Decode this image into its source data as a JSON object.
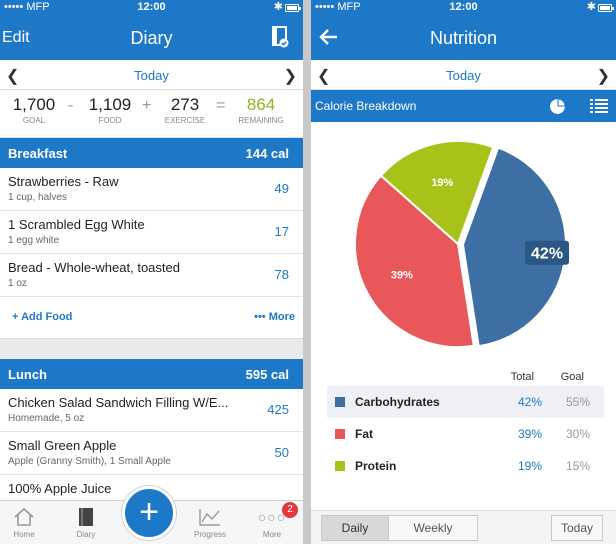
{
  "left": {
    "status": {
      "carrier": "MFP",
      "time": "12:00"
    },
    "nav": {
      "edit": "Edit",
      "title": "Diary"
    },
    "date": "Today",
    "summary": {
      "goal": "1,700",
      "goal_label": "GOAL",
      "minus": "-",
      "food": "1,109",
      "food_label": "FOOD",
      "plus": "+",
      "exercise": "273",
      "exercise_label": "EXERCISE",
      "equals": "=",
      "remaining": "864",
      "remaining_label": "REMAINING"
    },
    "breakfast": {
      "name": "Breakfast",
      "cal": "144 cal",
      "items": [
        {
          "name": "Strawberries - Raw",
          "desc": "1 cup, halves",
          "cal": "49"
        },
        {
          "name": "1 Scrambled Egg White",
          "desc": "1 egg white",
          "cal": "17"
        },
        {
          "name": "Bread - Whole-wheat, toasted",
          "desc": "1 oz",
          "cal": "78"
        }
      ],
      "add_food": "+ Add Food",
      "more": "••• More"
    },
    "lunch": {
      "name": "Lunch",
      "cal": "595 cal",
      "items": [
        {
          "name": "Chicken Salad Sandwich Filling W/E...",
          "desc": "Homemade, 5 oz",
          "cal": "425"
        },
        {
          "name": "Small Green Apple",
          "desc": "Apple (Granny Smith), 1 Small Apple",
          "cal": "50"
        },
        {
          "name": "100% Apple Juice",
          "desc": "",
          "cal": ""
        }
      ]
    },
    "tabbar": {
      "home": "Home",
      "diary": "Diary",
      "add": "+",
      "progress": "Progress",
      "more": "More",
      "more_badge": "2"
    }
  },
  "right": {
    "status": {
      "carrier": "MFP",
      "time": "12:00"
    },
    "nav": {
      "title": "Nutrition"
    },
    "date": "Today",
    "section": {
      "title": "Calorie Breakdown"
    },
    "chart_data": {
      "type": "pie",
      "title": "",
      "slices": [
        {
          "label": "Carbohydrates",
          "value": 42,
          "label_text": "42%",
          "color": "#3d6fa5"
        },
        {
          "label": "Fat",
          "value": 39,
          "label_text": "39%",
          "color": "#e8585a"
        },
        {
          "label": "Protein",
          "value": 19,
          "label_text": "19%",
          "color": "#a8c21a"
        }
      ],
      "start_angle_deg": -70
    },
    "table": {
      "col_total": "Total",
      "col_goal": "Goal",
      "rows": [
        {
          "name": "Carbohydrates",
          "total": "42%",
          "goal": "55%",
          "color": "#3d6fa5"
        },
        {
          "name": "Fat",
          "total": "39%",
          "goal": "30%",
          "color": "#e8585a"
        },
        {
          "name": "Protein",
          "total": "19%",
          "goal": "15%",
          "color": "#a8c21a"
        }
      ]
    },
    "segments": {
      "daily": "Daily",
      "weekly": "Weekly",
      "today": "Today"
    }
  },
  "colors": {
    "accent": "#1e78c8",
    "remaining": "#8cb41e",
    "badge": "#e0393e"
  }
}
